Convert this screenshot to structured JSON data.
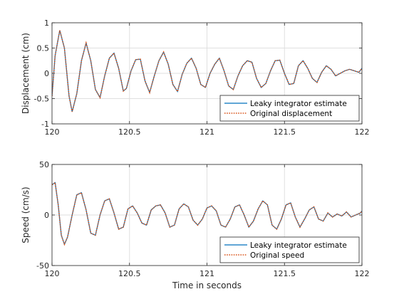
{
  "chart_data": [
    {
      "type": "line",
      "ylabel": "Displacement (cm)",
      "xlim": [
        120,
        122
      ],
      "ylim": [
        -1,
        1
      ],
      "xticks": [
        120,
        120.5,
        121,
        121.5,
        122
      ],
      "xtick_labels": [
        "120",
        "120.5",
        "121",
        "121.5",
        "122"
      ],
      "yticks": [
        -1,
        -0.5,
        0,
        0.5,
        1
      ],
      "ytick_labels": [
        "-1",
        "-0.5",
        "0",
        "0.5",
        "1"
      ],
      "grid": true,
      "legend_position": "bottom-right",
      "series": [
        {
          "name": "Leaky integrator estimate",
          "color": "#0072BD",
          "style": "solid",
          "x": [
            120.0,
            120.02,
            120.05,
            120.08,
            120.11,
            120.13,
            120.16,
            120.19,
            120.22,
            120.25,
            120.28,
            120.31,
            120.34,
            120.37,
            120.4,
            120.43,
            120.46,
            120.48,
            120.51,
            120.54,
            120.57,
            120.6,
            120.63,
            120.66,
            120.69,
            120.72,
            120.75,
            120.78,
            120.81,
            120.84,
            120.87,
            120.9,
            120.93,
            120.96,
            120.99,
            121.02,
            121.05,
            121.08,
            121.11,
            121.14,
            121.17,
            121.2,
            121.23,
            121.26,
            121.29,
            121.32,
            121.35,
            121.38,
            121.41,
            121.44,
            121.47,
            121.5,
            121.53,
            121.56,
            121.59,
            121.62,
            121.65,
            121.68,
            121.71,
            121.74,
            121.77,
            121.8,
            121.83,
            121.86,
            121.89,
            121.92,
            121.95,
            121.98,
            122.0
          ],
          "y": [
            -0.45,
            0.35,
            0.85,
            0.5,
            -0.45,
            -0.76,
            -0.4,
            0.25,
            0.6,
            0.25,
            -0.32,
            -0.48,
            -0.05,
            0.3,
            0.4,
            0.1,
            -0.35,
            -0.3,
            0.05,
            0.27,
            0.28,
            -0.15,
            -0.38,
            -0.05,
            0.25,
            0.42,
            0.18,
            -0.22,
            -0.36,
            -0.02,
            0.2,
            0.3,
            0.1,
            -0.22,
            -0.28,
            0.0,
            0.18,
            0.3,
            0.05,
            -0.25,
            -0.32,
            -0.05,
            0.15,
            0.25,
            0.22,
            -0.1,
            -0.28,
            -0.2,
            0.05,
            0.25,
            0.26,
            0.0,
            -0.22,
            -0.2,
            0.15,
            0.25,
            0.1,
            -0.1,
            -0.18,
            0.02,
            0.15,
            0.08,
            -0.05,
            0.0,
            0.05,
            0.08,
            0.05,
            0.02,
            0.1
          ]
        },
        {
          "name": "Original displacement",
          "color": "#D95319",
          "style": "dotted",
          "x": [
            120.0,
            120.02,
            120.05,
            120.08,
            120.11,
            120.13,
            120.16,
            120.19,
            120.22,
            120.25,
            120.28,
            120.31,
            120.34,
            120.37,
            120.4,
            120.43,
            120.46,
            120.48,
            120.51,
            120.54,
            120.57,
            120.6,
            120.63,
            120.66,
            120.69,
            120.72,
            120.75,
            120.78,
            120.81,
            120.84,
            120.87,
            120.9,
            120.93,
            120.96,
            120.99,
            121.02,
            121.05,
            121.08,
            121.11,
            121.14,
            121.17,
            121.2,
            121.23,
            121.26,
            121.29,
            121.32,
            121.35,
            121.38,
            121.41,
            121.44,
            121.47,
            121.5,
            121.53,
            121.56,
            121.59,
            121.62,
            121.65,
            121.68,
            121.71,
            121.74,
            121.77,
            121.8,
            121.83,
            121.86,
            121.89,
            121.92,
            121.95,
            121.98,
            122.0
          ],
          "y": [
            -0.45,
            0.35,
            0.85,
            0.5,
            -0.45,
            -0.76,
            -0.4,
            0.25,
            0.6,
            0.25,
            -0.32,
            -0.48,
            -0.05,
            0.3,
            0.4,
            0.1,
            -0.35,
            -0.3,
            0.05,
            0.27,
            0.28,
            -0.15,
            -0.38,
            -0.05,
            0.25,
            0.42,
            0.18,
            -0.22,
            -0.36,
            -0.02,
            0.2,
            0.3,
            0.1,
            -0.22,
            -0.28,
            0.0,
            0.18,
            0.3,
            0.05,
            -0.25,
            -0.32,
            -0.05,
            0.15,
            0.25,
            0.22,
            -0.1,
            -0.28,
            -0.2,
            0.05,
            0.25,
            0.26,
            0.0,
            -0.22,
            -0.2,
            0.15,
            0.25,
            0.1,
            -0.1,
            -0.18,
            0.02,
            0.15,
            0.08,
            -0.05,
            0.0,
            0.05,
            0.08,
            0.05,
            0.02,
            0.1
          ]
        }
      ]
    },
    {
      "type": "line",
      "xlabel": "Time in seconds",
      "ylabel": "Speed (cm/s)",
      "xlim": [
        120,
        122
      ],
      "ylim": [
        -50,
        50
      ],
      "xticks": [
        120,
        120.5,
        121,
        121.5,
        122
      ],
      "xtick_labels": [
        "120",
        "120.5",
        "121",
        "121.5",
        "122"
      ],
      "yticks": [
        -50,
        0,
        50
      ],
      "ytick_labels": [
        "-50",
        "0",
        "50"
      ],
      "grid": true,
      "legend_position": "bottom-right",
      "series": [
        {
          "name": "Leaky integrator estimate",
          "color": "#0072BD",
          "style": "solid",
          "x": [
            120.0,
            120.02,
            120.04,
            120.06,
            120.08,
            120.1,
            120.13,
            120.16,
            120.19,
            120.22,
            120.25,
            120.28,
            120.31,
            120.34,
            120.37,
            120.4,
            120.43,
            120.46,
            120.49,
            120.52,
            120.55,
            120.58,
            120.61,
            120.64,
            120.67,
            120.7,
            120.73,
            120.76,
            120.79,
            120.82,
            120.85,
            120.88,
            120.91,
            120.94,
            120.97,
            121.0,
            121.03,
            121.06,
            121.09,
            121.12,
            121.15,
            121.18,
            121.21,
            121.24,
            121.27,
            121.3,
            121.33,
            121.36,
            121.39,
            121.42,
            121.45,
            121.48,
            121.51,
            121.54,
            121.57,
            121.6,
            121.63,
            121.66,
            121.69,
            121.72,
            121.75,
            121.78,
            121.81,
            121.84,
            121.87,
            121.9,
            121.93,
            121.96,
            121.99,
            122.0
          ],
          "y": [
            30,
            32,
            10,
            -20,
            -29,
            -22,
            0,
            20,
            22,
            5,
            -18,
            -20,
            0,
            14,
            16,
            2,
            -14,
            -12,
            6,
            9,
            2,
            -8,
            -10,
            5,
            9,
            10,
            2,
            -12,
            -10,
            6,
            11,
            8,
            -5,
            -10,
            -4,
            7,
            9,
            4,
            -10,
            -12,
            -4,
            8,
            10,
            0,
            -12,
            -6,
            6,
            14,
            10,
            -10,
            -14,
            -4,
            10,
            12,
            -2,
            -12,
            -4,
            5,
            8,
            -4,
            -6,
            2,
            -2,
            1,
            -1,
            3,
            -2,
            0,
            2,
            4
          ]
        },
        {
          "name": "Original speed",
          "color": "#D95319",
          "style": "dotted",
          "x": [
            120.0,
            120.02,
            120.04,
            120.06,
            120.08,
            120.1,
            120.13,
            120.16,
            120.19,
            120.22,
            120.25,
            120.28,
            120.31,
            120.34,
            120.37,
            120.4,
            120.43,
            120.46,
            120.49,
            120.52,
            120.55,
            120.58,
            120.61,
            120.64,
            120.67,
            120.7,
            120.73,
            120.76,
            120.79,
            120.82,
            120.85,
            120.88,
            120.91,
            120.94,
            120.97,
            121.0,
            121.03,
            121.06,
            121.09,
            121.12,
            121.15,
            121.18,
            121.21,
            121.24,
            121.27,
            121.3,
            121.33,
            121.36,
            121.39,
            121.42,
            121.45,
            121.48,
            121.51,
            121.54,
            121.57,
            121.6,
            121.63,
            121.66,
            121.69,
            121.72,
            121.75,
            121.78,
            121.81,
            121.84,
            121.87,
            121.9,
            121.93,
            121.96,
            121.99,
            122.0
          ],
          "y": [
            30,
            32,
            10,
            -20,
            -29,
            -22,
            0,
            20,
            22,
            5,
            -18,
            -20,
            0,
            14,
            16,
            2,
            -14,
            -12,
            6,
            9,
            2,
            -8,
            -10,
            5,
            9,
            10,
            2,
            -12,
            -10,
            6,
            11,
            8,
            -5,
            -10,
            -4,
            7,
            9,
            4,
            -10,
            -12,
            -4,
            8,
            10,
            0,
            -12,
            -6,
            6,
            14,
            10,
            -10,
            -14,
            -4,
            10,
            12,
            -2,
            -12,
            -4,
            5,
            8,
            -4,
            -6,
            2,
            -2,
            1,
            -1,
            3,
            -2,
            0,
            2,
            4
          ]
        }
      ]
    }
  ]
}
